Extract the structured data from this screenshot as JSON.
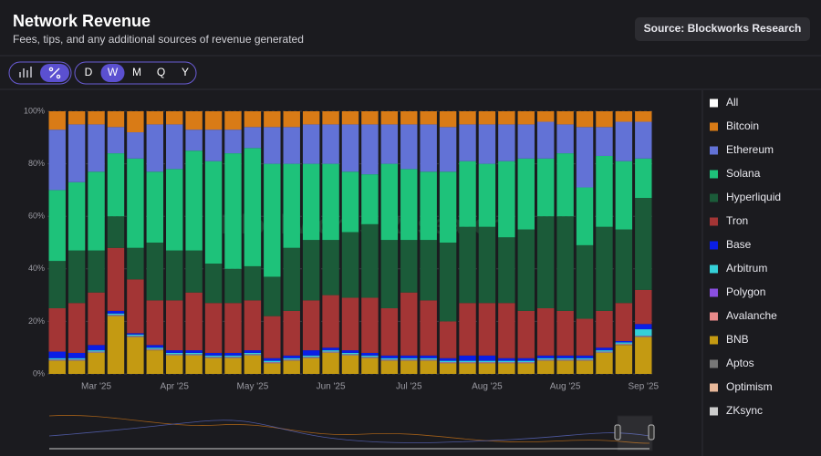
{
  "header": {
    "title": "Network Revenue",
    "subtitle": "Fees, tips, and any additional sources of revenue generated",
    "source": "Source: Blockworks Research"
  },
  "controls": {
    "periods": [
      "D",
      "W",
      "M",
      "Q",
      "Y"
    ]
  },
  "watermark": "Blockworks Research",
  "chart_data": {
    "type": "bar",
    "stacked": true,
    "grid": true,
    "legend_position": "right",
    "legend_all_label": "All",
    "categories": [
      null,
      null,
      "Mar '25",
      null,
      null,
      null,
      "Apr '25",
      null,
      null,
      null,
      "May '25",
      null,
      null,
      null,
      "Jun '25",
      null,
      null,
      null,
      "Jul '25",
      null,
      null,
      null,
      "Aug '25",
      null,
      null,
      null,
      "Aug '25",
      null,
      null,
      null,
      "Sep '25"
    ],
    "ylim": [
      0,
      100
    ],
    "yticks": [
      {
        "value": 0,
        "label": "0%"
      },
      {
        "value": 20,
        "label": "20%"
      },
      {
        "value": 40,
        "label": "40%"
      },
      {
        "value": 60,
        "label": "60%"
      },
      {
        "value": 80,
        "label": "80%"
      },
      {
        "value": 100,
        "label": "100%"
      }
    ],
    "series": [
      {
        "name": "Bitcoin",
        "color": "#d97b16",
        "values": [
          7,
          5,
          5,
          6,
          8,
          5,
          5,
          7,
          7,
          7,
          6,
          6,
          6,
          5,
          5,
          5,
          5,
          5,
          5,
          5,
          6,
          5,
          5,
          5,
          5,
          4,
          5,
          6,
          6,
          4,
          4
        ]
      },
      {
        "name": "Ethereum",
        "color": "#6272d6",
        "values": [
          23,
          22,
          18,
          10,
          10,
          18,
          17,
          8,
          12,
          9,
          8,
          14,
          14,
          15,
          15,
          18,
          19,
          15,
          17,
          18,
          17,
          14,
          15,
          14,
          13,
          14,
          11,
          23,
          11,
          15,
          14
        ]
      },
      {
        "name": "Solana",
        "color": "#1ec27a",
        "values": [
          27,
          26,
          30,
          24,
          34,
          27,
          31,
          38,
          39,
          44,
          45,
          43,
          32,
          29,
          29,
          23,
          19,
          29,
          27,
          26,
          27,
          25,
          24,
          29,
          27,
          22,
          24,
          22,
          27,
          26,
          15
        ]
      },
      {
        "name": "Hyperliquid",
        "color": "#1b5b39",
        "values": [
          18,
          20,
          16,
          12,
          12,
          22,
          19,
          16,
          15,
          13,
          13,
          15,
          24,
          23,
          21,
          25,
          28,
          26,
          20,
          23,
          30,
          29,
          29,
          25,
          31,
          35,
          36,
          28,
          32,
          28,
          35
        ]
      },
      {
        "name": "Tron",
        "color": "#a33535",
        "values": [
          16.5,
          19,
          20,
          24,
          20.5,
          17,
          19,
          22,
          19,
          19,
          19,
          16,
          17,
          19,
          20,
          20,
          21,
          18,
          24,
          21,
          14,
          20,
          20,
          21,
          18,
          18,
          17,
          14,
          14,
          14.5,
          13
        ]
      },
      {
        "name": "Base",
        "color": "#0a1ee6",
        "values": [
          2.5,
          2,
          2,
          1,
          0.5,
          1,
          1,
          1,
          1,
          1,
          1,
          1,
          1,
          2,
          1,
          1,
          1,
          1,
          1,
          1,
          1,
          2,
          2,
          1,
          1,
          1,
          1,
          1,
          1,
          0.5,
          2
        ]
      },
      {
        "name": "Arbitrum",
        "color": "#35d0d8",
        "values": [
          0.5,
          0.5,
          0.5,
          0.5,
          0.5,
          0.5,
          0.5,
          0.5,
          0.5,
          0.5,
          0.5,
          0.5,
          0.5,
          0.5,
          0.5,
          0.5,
          0.5,
          0.5,
          0.5,
          0.5,
          0.5,
          0.5,
          0.5,
          0.5,
          0.5,
          0.5,
          0.5,
          0.5,
          0.5,
          0.5,
          2.5
        ]
      },
      {
        "name": "Polygon",
        "color": "#8a4fe0",
        "values": [
          0.1,
          0.1,
          0.1,
          0.1,
          0.1,
          0.1,
          0.1,
          0.1,
          0.1,
          0.1,
          0.1,
          0.1,
          0.1,
          0.1,
          0.1,
          0.1,
          0.1,
          0.1,
          0.1,
          0.1,
          0.1,
          0.1,
          0.1,
          0.1,
          0.1,
          0.1,
          0.1,
          0.1,
          0.1,
          0.1,
          0.1
        ]
      },
      {
        "name": "Avalanche",
        "color": "#e88a8a",
        "values": [
          0.1,
          0.1,
          0.1,
          0.1,
          0.1,
          0.1,
          0.1,
          0.1,
          0.1,
          0.1,
          0.1,
          0.1,
          0.1,
          0.1,
          0.1,
          0.1,
          0.1,
          0.1,
          0.1,
          0.1,
          0.1,
          0.1,
          0.1,
          0.1,
          0.1,
          0.1,
          0.1,
          0.1,
          0.1,
          0.1,
          0.1
        ]
      },
      {
        "name": "BNB",
        "color": "#c49a12",
        "values": [
          5,
          5,
          8,
          22,
          14,
          9,
          7,
          7,
          6,
          6,
          7,
          4,
          5,
          6,
          8,
          7,
          6,
          5,
          5,
          5,
          4,
          4,
          4,
          4,
          4,
          5,
          5,
          5,
          8,
          11,
          14
        ]
      },
      {
        "name": "Aptos",
        "color": "#777777",
        "values": [
          0.1,
          0.1,
          0.1,
          0.1,
          0.1,
          0.1,
          0.1,
          0.1,
          0.1,
          0.1,
          0.1,
          0.1,
          0.1,
          0.1,
          0.1,
          0.1,
          0.1,
          0.1,
          0.1,
          0.1,
          0.1,
          0.1,
          0.1,
          0.1,
          0.1,
          0.1,
          0.1,
          0.1,
          0.1,
          0.1,
          0.1
        ]
      },
      {
        "name": "Optimism",
        "color": "#e8b89a",
        "values": [
          0.1,
          0.1,
          0.1,
          0.1,
          0.1,
          0.1,
          0.1,
          0.1,
          0.1,
          0.1,
          0.1,
          0.1,
          0.1,
          0.1,
          0.1,
          0.1,
          0.1,
          0.1,
          0.1,
          0.1,
          0.1,
          0.1,
          0.1,
          0.1,
          0.1,
          0.1,
          0.1,
          0.1,
          0.1,
          0.1,
          0.1
        ]
      },
      {
        "name": "ZKsync",
        "color": "#cccccc",
        "values": [
          0.1,
          0.1,
          0.1,
          0.1,
          0.1,
          0.1,
          0.1,
          0.1,
          0.1,
          0.1,
          0.1,
          0.1,
          0.1,
          0.1,
          0.1,
          0.1,
          0.1,
          0.1,
          0.1,
          0.1,
          0.1,
          0.1,
          0.1,
          0.1,
          0.1,
          0.1,
          0.1,
          0.1,
          0.1,
          0.1,
          0.1
        ]
      }
    ],
    "stack_order": [
      "BNB",
      "Aptos",
      "Optimism",
      "ZKsync",
      "Polygon",
      "Avalanche",
      "Arbitrum",
      "Base",
      "Tron",
      "Hyperliquid",
      "Solana",
      "Ethereum",
      "Bitcoin"
    ]
  }
}
